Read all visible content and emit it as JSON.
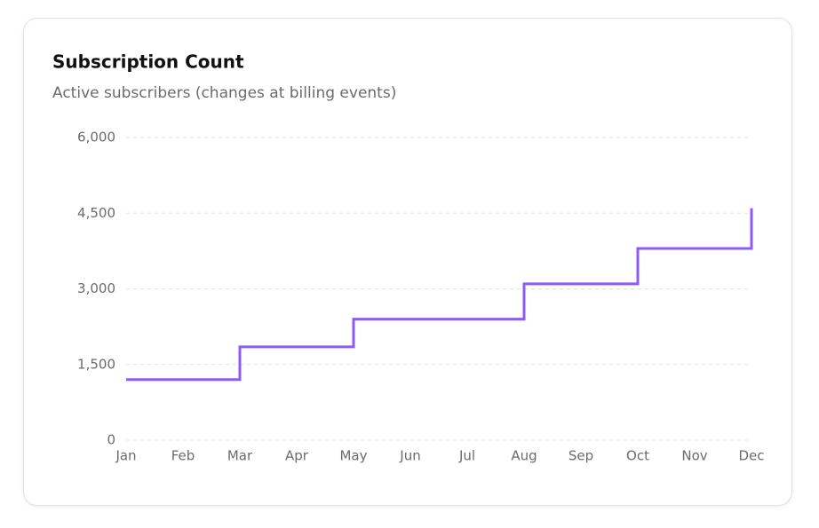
{
  "chart_data": {
    "type": "line",
    "step": "after",
    "title": "Subscription Count",
    "subtitle": "Active subscribers (changes at billing events)",
    "categories": [
      "Jan",
      "Feb",
      "Mar",
      "Apr",
      "May",
      "Jun",
      "Jul",
      "Aug",
      "Sep",
      "Oct",
      "Nov",
      "Dec"
    ],
    "series": [
      {
        "name": "Subscribers",
        "color": "#8b5cf6",
        "values": [
          1200,
          1200,
          1850,
          1850,
          2400,
          2400,
          2400,
          3100,
          3100,
          3800,
          3800,
          4600
        ]
      }
    ],
    "ylim": [
      0,
      6000
    ],
    "yticks": [
      0,
      {
        "value": 1500,
        "label": "1,500"
      },
      {
        "value": 3000,
        "label": "3,000"
      },
      {
        "value": 4500,
        "label": "4,500"
      },
      {
        "value": 6000,
        "label": "6,000"
      }
    ],
    "grid": true
  }
}
